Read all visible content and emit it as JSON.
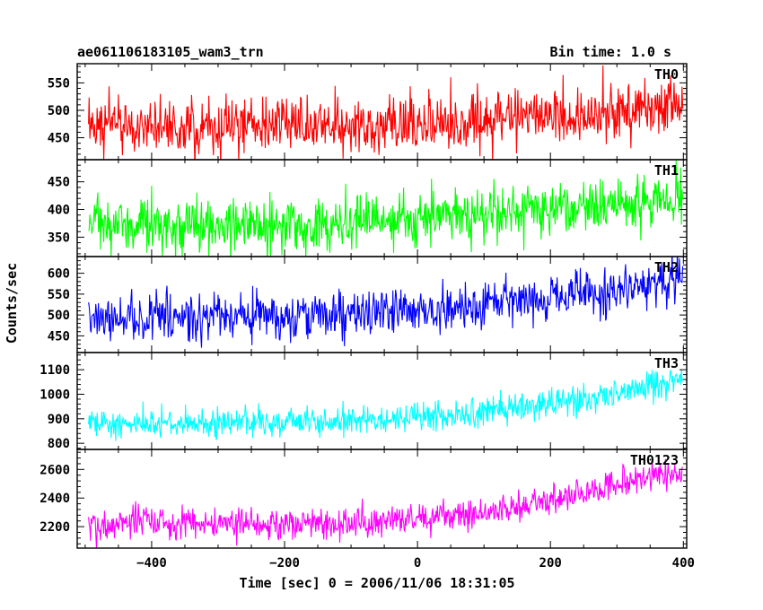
{
  "header": {
    "left_title": "ae061106183105_wam3_trn",
    "right_title": "Bin time: 1.0 s"
  },
  "axes": {
    "xlabel": "Time [sec] 0 = 2006/11/06 18:31:05",
    "ylabel": "Counts/sec"
  },
  "chart_data": {
    "type": "line",
    "bin_time_s": 1.0,
    "xlim": [
      -512,
      405
    ],
    "x_ticks": [
      -400,
      -200,
      0,
      200,
      400
    ],
    "series_range": [
      -495,
      399
    ],
    "panels": [
      {
        "name": "TH0",
        "color": "#ff0000",
        "ylim": [
          410,
          585
        ],
        "y_ticks": [
          450,
          500,
          550
        ],
        "trend": [
          [
            -495,
            470
          ],
          [
            -100,
            472
          ],
          [
            100,
            478
          ],
          [
            250,
            492
          ],
          [
            399,
            512
          ]
        ],
        "noise_sd": 26
      },
      {
        "name": "TH1",
        "color": "#00ff00",
        "ylim": [
          315,
          490
        ],
        "y_ticks": [
          350,
          400,
          450
        ],
        "trend": [
          [
            -495,
            375
          ],
          [
            -100,
            375
          ],
          [
            100,
            388
          ],
          [
            250,
            405
          ],
          [
            399,
            420
          ]
        ],
        "noise_sd": 24
      },
      {
        "name": "TH2",
        "color": "#0000ff",
        "ylim": [
          410,
          640
        ],
        "y_ticks": [
          450,
          500,
          550,
          600
        ],
        "trend": [
          [
            -495,
            492
          ],
          [
            -100,
            500
          ],
          [
            100,
            520
          ],
          [
            250,
            550
          ],
          [
            399,
            590
          ]
        ],
        "noise_sd": 28
      },
      {
        "name": "TH3",
        "color": "#00ffff",
        "ylim": [
          775,
          1170
        ],
        "y_ticks": [
          800,
          900,
          1000,
          1100
        ],
        "trend": [
          [
            -495,
            875
          ],
          [
            -100,
            890
          ],
          [
            100,
            925
          ],
          [
            250,
            985
          ],
          [
            399,
            1060
          ]
        ],
        "noise_sd": 30
      },
      {
        "name": "TH0123",
        "color": "#ff00ff",
        "ylim": [
          2050,
          2740
        ],
        "y_ticks": [
          2200,
          2400,
          2600
        ],
        "trend": [
          [
            -495,
            2215
          ],
          [
            -100,
            2225
          ],
          [
            100,
            2290
          ],
          [
            250,
            2430
          ],
          [
            399,
            2600
          ]
        ],
        "noise_sd": 55
      }
    ]
  }
}
